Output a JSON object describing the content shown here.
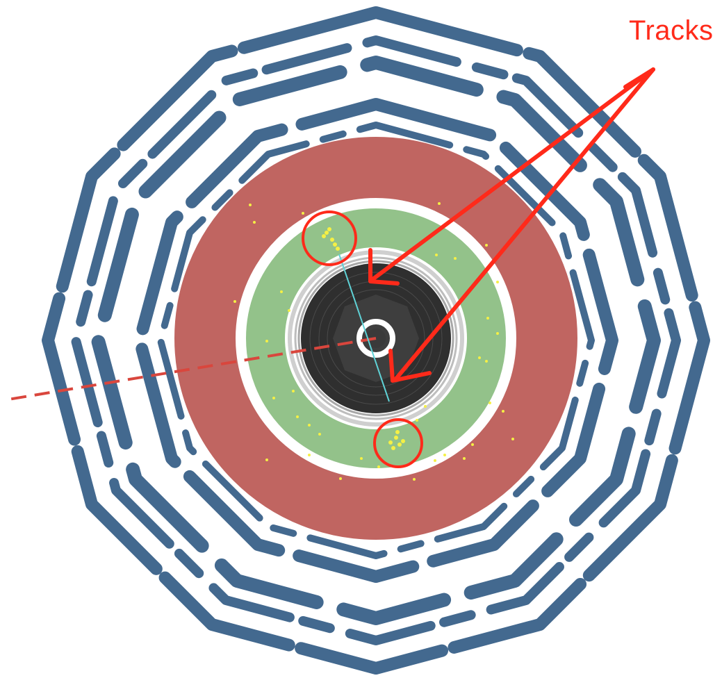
{
  "annotation": {
    "label": "Tracks",
    "color": "#ff2a1a"
  },
  "colors": {
    "muon_chambers": "#43698f",
    "hadron_calorimeter": "#c06561",
    "em_calorimeter": "#93c28a",
    "tracker_outer": "#d0d0d0",
    "tracker_inner": "#2e2e2e",
    "energy_deposits": "#f5f045",
    "track": "#5fd2d6",
    "missing_energy": "#d9463d",
    "highlight": "#ff2a1a"
  }
}
